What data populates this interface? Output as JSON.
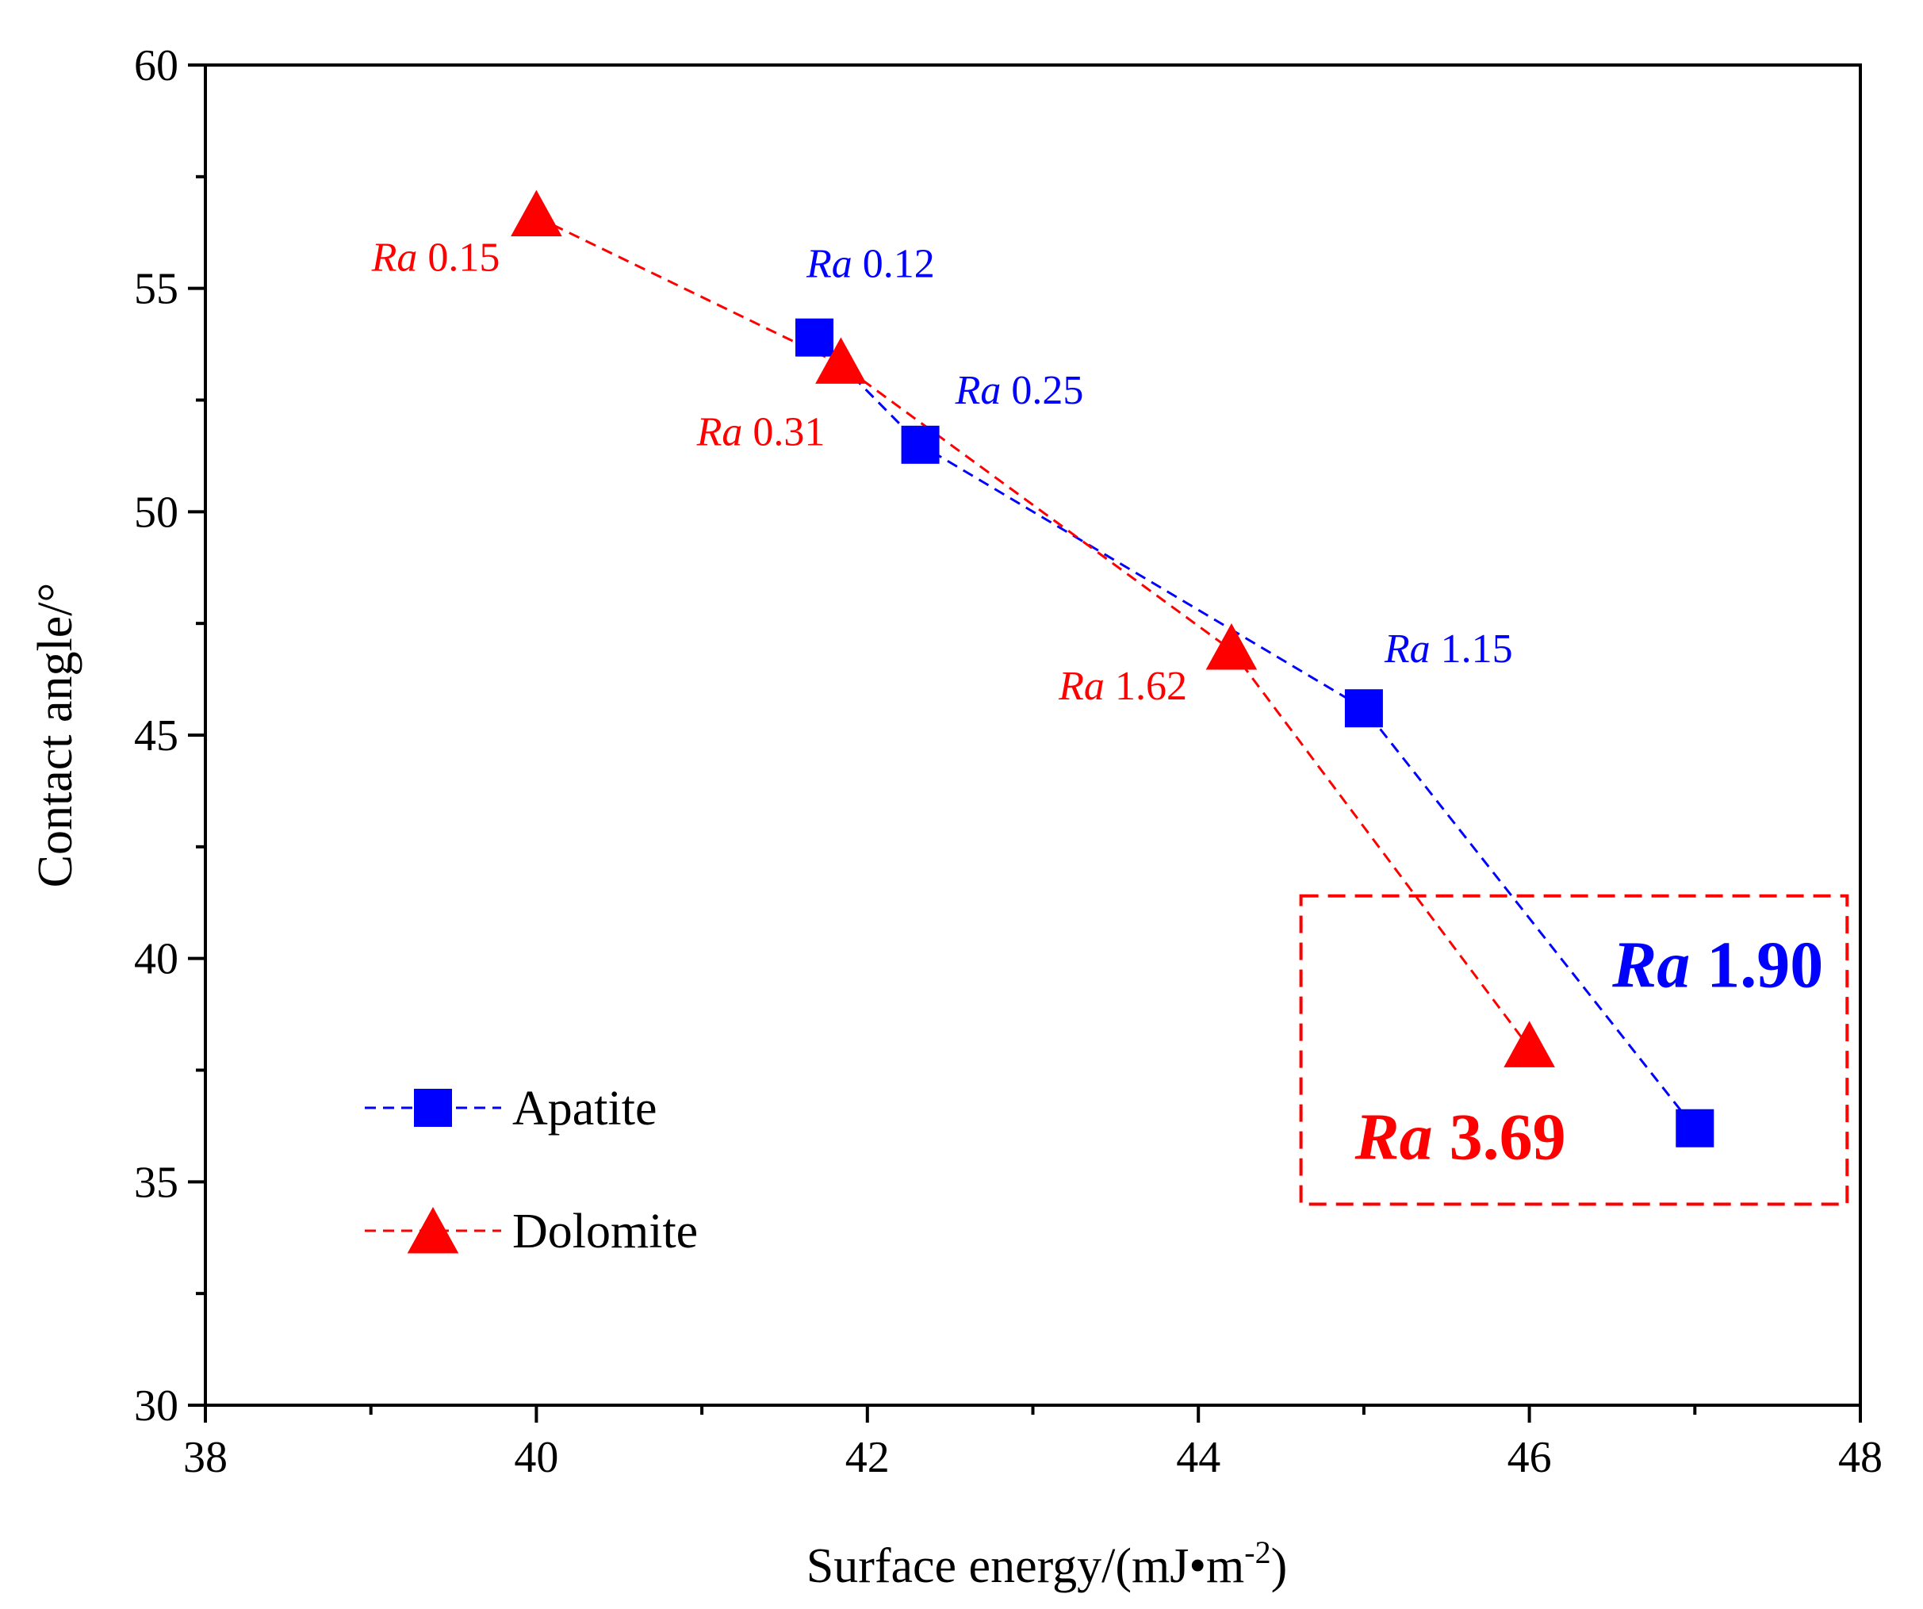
{
  "chart_data": {
    "type": "line",
    "xlabel": "Surface energy/(mJ•m",
    "xlabel_sup": "-2",
    "xlabel_close": ")",
    "ylabel": "Contact angle/°",
    "xlim": [
      38,
      48
    ],
    "ylim": [
      30,
      60
    ],
    "xticks": [
      38,
      40,
      42,
      44,
      46,
      48
    ],
    "xticks_minor": [
      39,
      41,
      43,
      45,
      47
    ],
    "yticks": [
      30,
      35,
      40,
      45,
      50,
      55,
      60
    ],
    "yticks_minor": [
      32.5,
      37.5,
      42.5,
      47.5,
      52.5,
      57.5
    ],
    "grid": false,
    "legend_position": "lower-left",
    "series": [
      {
        "name": "Apatite",
        "color": "#0000ff",
        "marker": "square",
        "line": "dashed",
        "x": [
          41.68,
          42.32,
          45.0,
          47.0
        ],
        "y": [
          53.9,
          51.5,
          45.6,
          36.2
        ],
        "labels": [
          "0.12",
          "0.25",
          "1.15",
          "1.90"
        ]
      },
      {
        "name": "Dolomite",
        "color": "#ff0000",
        "marker": "triangle",
        "line": "dashed",
        "x": [
          40.0,
          41.84,
          44.2,
          46.0
        ],
        "y": [
          56.6,
          53.3,
          46.9,
          38.0
        ],
        "labels": [
          "0.15",
          "0.31",
          "1.62",
          "3.69"
        ]
      }
    ],
    "label_prefix": "Ra",
    "highlight_box": {
      "x": [
        44.62,
        47.92
      ],
      "y": [
        34.5,
        41.4
      ],
      "color": "#ff0000",
      "style": "dashed"
    }
  }
}
